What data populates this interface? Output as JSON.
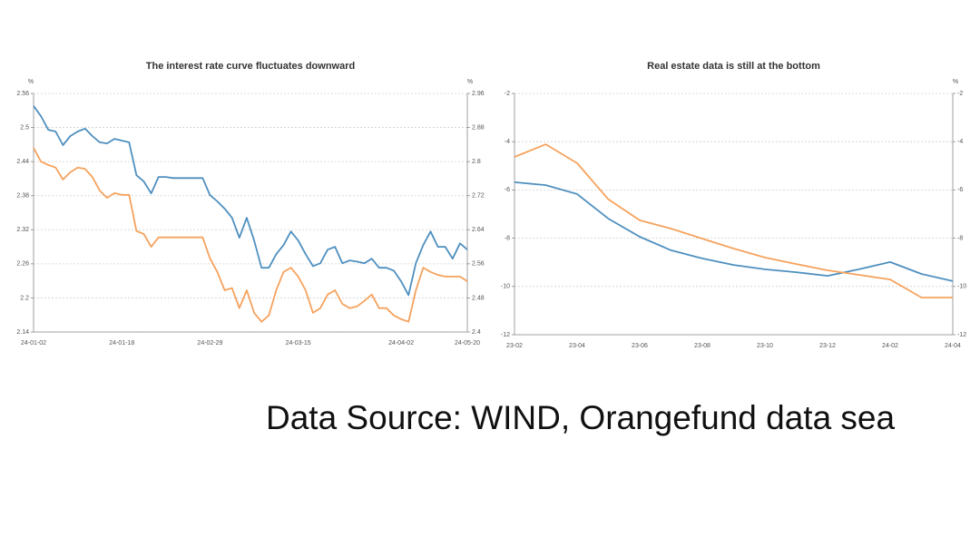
{
  "chart_data": [
    {
      "type": "line",
      "title": "The interest rate curve fluctuates downward",
      "y_label": "%",
      "y2_label": "%",
      "categories": [
        "24-01-02",
        null,
        null,
        null,
        null,
        null,
        null,
        null,
        null,
        null,
        null,
        null,
        "24-01-18",
        null,
        null,
        null,
        null,
        null,
        null,
        null,
        null,
        null,
        null,
        null,
        "24-02-29",
        null,
        null,
        null,
        null,
        null,
        null,
        null,
        null,
        null,
        null,
        null,
        "24-03-15",
        null,
        null,
        null,
        null,
        null,
        null,
        null,
        null,
        null,
        null,
        null,
        null,
        null,
        "24-04-02",
        null,
        null,
        null,
        null,
        null,
        null,
        null,
        null,
        "24-05-20"
      ],
      "series": [
        {
          "color": "#4e8fbf",
          "values": [
            2.538,
            2.52,
            2.496,
            2.493,
            2.469,
            2.485,
            2.493,
            2.498,
            2.485,
            2.474,
            2.472,
            2.48,
            2.477,
            2.474,
            2.416,
            2.405,
            2.384,
            2.413,
            2.413,
            2.411,
            2.411,
            2.411,
            2.411,
            2.411,
            2.381,
            2.37,
            2.357,
            2.341,
            2.306,
            2.341,
            2.301,
            2.253,
            2.253,
            2.277,
            2.293,
            2.317,
            2.301,
            2.277,
            2.256,
            2.261,
            2.285,
            2.29,
            2.261,
            2.266,
            2.264,
            2.261,
            2.269,
            2.253,
            2.253,
            2.248,
            2.229,
            2.205,
            2.261,
            2.293,
            2.317,
            2.29,
            2.29,
            2.269,
            2.296,
            2.285
          ]
        },
        {
          "color": "#f5a25d",
          "axis": "y2",
          "values": [
            2.832,
            2.8,
            2.792,
            2.786,
            2.758,
            2.775,
            2.786,
            2.783,
            2.764,
            2.732,
            2.715,
            2.726,
            2.722,
            2.722,
            2.637,
            2.63,
            2.6,
            2.622,
            2.622,
            2.622,
            2.622,
            2.622,
            2.622,
            2.622,
            2.573,
            2.541,
            2.498,
            2.503,
            2.456,
            2.498,
            2.445,
            2.424,
            2.439,
            2.498,
            2.541,
            2.551,
            2.53,
            2.498,
            2.445,
            2.456,
            2.488,
            2.498,
            2.466,
            2.456,
            2.46,
            2.473,
            2.488,
            2.456,
            2.456,
            2.439,
            2.43,
            2.424,
            2.498,
            2.551,
            2.541,
            2.534,
            2.53,
            2.53,
            2.53,
            2.519
          ]
        }
      ],
      "ylim": [
        2.14,
        2.56
      ],
      "yticks": [
        2.14,
        2.2,
        2.26,
        2.32,
        2.38,
        2.44,
        2.5,
        2.56
      ],
      "y2lim": [
        2.4,
        2.96
      ],
      "y2ticks": [
        2.4,
        2.48,
        2.56,
        2.64,
        2.72,
        2.8,
        2.88,
        2.96
      ],
      "grid": true
    },
    {
      "type": "line",
      "title": "Real estate data is still at the bottom",
      "y2_label": "%",
      "categories": [
        "23-02",
        null,
        "23-04",
        null,
        "23-06",
        null,
        "23-08",
        null,
        "23-10",
        null,
        "23-12",
        null,
        "24-02",
        null,
        "24-04"
      ],
      "series": [
        {
          "color": "#4e8fbf",
          "values": [
            -5.68,
            -5.8,
            -6.17,
            -7.19,
            -7.94,
            -8.5,
            -8.84,
            -9.11,
            -9.29,
            -9.41,
            -9.56,
            -9.29,
            -8.99,
            -9.48,
            -9.78
          ]
        },
        {
          "color": "#f5a25d",
          "values": [
            -4.63,
            -4.11,
            -4.89,
            -6.39,
            -7.26,
            -7.6,
            -8.02,
            -8.43,
            -8.8,
            -9.07,
            -9.33,
            -9.52,
            -9.71,
            -10.46,
            -10.46
          ]
        }
      ],
      "ylim": [
        -12,
        -2
      ],
      "yticks": [
        -12,
        -10,
        -8,
        -6,
        -4,
        -2
      ],
      "y2lim": [
        -12,
        -2
      ],
      "y2ticks": [
        -12,
        -10,
        -8,
        -6,
        -4,
        -2
      ],
      "grid": true
    }
  ],
  "source": "Data Source: WIND, Orangefund data sea"
}
